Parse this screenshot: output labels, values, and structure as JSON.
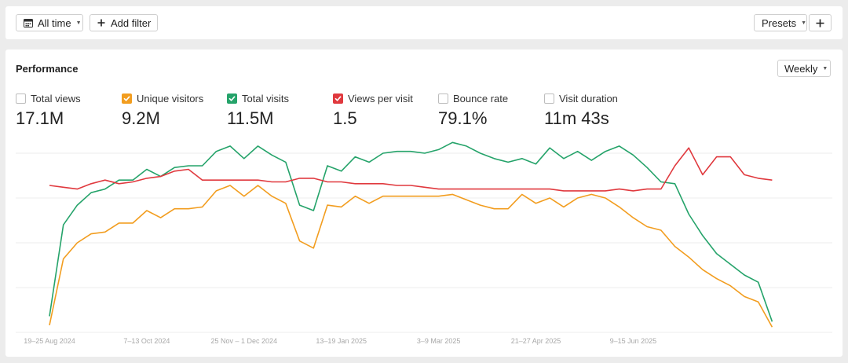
{
  "toolbar": {
    "date_range_label": "All time",
    "add_filter_label": "Add filter",
    "presets_label": "Presets",
    "calendar_icon": "calendar-icon",
    "plus_icon": "plus-icon"
  },
  "panel": {
    "title": "Performance",
    "interval_label": "Weekly"
  },
  "metrics": [
    {
      "label": "Total views",
      "value": "17.1M",
      "checked": false,
      "color": "#bdbdbd"
    },
    {
      "label": "Unique visitors",
      "value": "9.2M",
      "checked": true,
      "color": "#f29d1f"
    },
    {
      "label": "Total visits",
      "value": "11.5M",
      "checked": true,
      "color": "#25a36a"
    },
    {
      "label": "Views per visit",
      "value": "1.5",
      "checked": true,
      "color": "#e0393e"
    },
    {
      "label": "Bounce rate",
      "value": "79.1%",
      "checked": false,
      "color": "#bdbdbd"
    },
    {
      "label": "Visit duration",
      "value": "11m 43s",
      "checked": false,
      "color": "#bdbdbd"
    }
  ],
  "chart_data": {
    "type": "line",
    "weeks": 53,
    "x_tick_labels": [
      {
        "week": 0,
        "label": "19–25 Aug 2024"
      },
      {
        "week": 7,
        "label": "7–13 Oct 2024"
      },
      {
        "week": 14,
        "label": "25 Nov – 1 Dec 2024"
      },
      {
        "week": 21,
        "label": "13–19 Jan 2025"
      },
      {
        "week": 28,
        "label": "3–9 Mar 2025"
      },
      {
        "week": 35,
        "label": "21–27 Apr 2025"
      },
      {
        "week": 42,
        "label": "9–15 Jun 2025"
      }
    ],
    "ylim": [
      0,
      100
    ],
    "gridlines": 5,
    "y_axis_labels_visible": false,
    "series": [
      {
        "name": "Total visits",
        "color": "#25a36a",
        "values": [
          9,
          60,
          71,
          78,
          80,
          85,
          85,
          91,
          87,
          92,
          93,
          93,
          101,
          104,
          97,
          104,
          99,
          95,
          71,
          68,
          93,
          90,
          98,
          95,
          100,
          101,
          101,
          100,
          102,
          106,
          104,
          100,
          97,
          95,
          97,
          94,
          103,
          97,
          101,
          96,
          101,
          104,
          99,
          92,
          84,
          83,
          66,
          54,
          44,
          38,
          32,
          28,
          6
        ]
      },
      {
        "name": "Unique visitors",
        "color": "#f29d1f",
        "values": [
          4,
          41,
          50,
          55,
          56,
          61,
          61,
          68,
          64,
          69,
          69,
          70,
          79,
          82,
          76,
          82,
          76,
          72,
          51,
          47,
          71,
          70,
          76,
          72,
          76,
          76,
          76,
          76,
          76,
          77,
          74,
          71,
          69,
          69,
          77,
          72,
          75,
          70,
          75,
          77,
          75,
          70,
          64,
          59,
          57,
          48,
          42,
          35,
          30,
          26,
          20,
          17,
          3
        ]
      },
      {
        "name": "Views per visit",
        "color": "#e0393e",
        "values": [
          82,
          81,
          80,
          83,
          85,
          83,
          84,
          86,
          87,
          90,
          91,
          85,
          85,
          85,
          85,
          85,
          84,
          84,
          86,
          86,
          84,
          84,
          83,
          83,
          83,
          82,
          82,
          81,
          80,
          80,
          80,
          80,
          80,
          80,
          80,
          80,
          80,
          79,
          79,
          79,
          79,
          80,
          79,
          80,
          80,
          93,
          103,
          88,
          98,
          98,
          88,
          86,
          85
        ]
      }
    ]
  }
}
